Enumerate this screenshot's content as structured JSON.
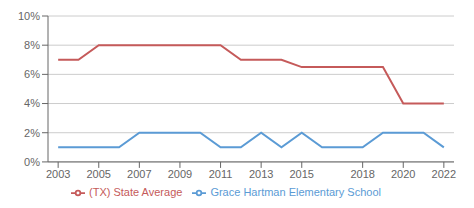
{
  "chart_data": {
    "type": "line",
    "x": [
      2003,
      2004,
      2005,
      2006,
      2007,
      2008,
      2009,
      2010,
      2011,
      2012,
      2013,
      2014,
      2015,
      2016,
      2017,
      2018,
      2019,
      2020,
      2021,
      2022
    ],
    "series": [
      {
        "name": "Grace Hartman Elementary School",
        "color": "#5B9BD5",
        "values": [
          1,
          1,
          1,
          1,
          2,
          2,
          2,
          2,
          1,
          1,
          2,
          1,
          2,
          1,
          1,
          1,
          2,
          2,
          2,
          1
        ]
      },
      {
        "name": "(TX) State Average",
        "color": "#C55A5A",
        "values": [
          7,
          7,
          8,
          8,
          8,
          8,
          8,
          8,
          8,
          7,
          7,
          7,
          6.5,
          6.5,
          6.5,
          6.5,
          6.5,
          4,
          4,
          4
        ]
      }
    ],
    "xlim": [
      2002.5,
      2022.5
    ],
    "xticks": [
      2003,
      2005,
      2007,
      2009,
      2011,
      2013,
      2015,
      2018,
      2020,
      2022
    ],
    "ylim": [
      0,
      10
    ],
    "yticks": [
      {
        "value": 0,
        "label": "0%"
      },
      {
        "value": 2,
        "label": "2%"
      },
      {
        "value": 4,
        "label": "4%"
      },
      {
        "value": 6,
        "label": "6%"
      },
      {
        "value": 8,
        "label": "8%"
      },
      {
        "value": 10,
        "label": "10%"
      }
    ],
    "grid": true,
    "legend": "bottom"
  }
}
